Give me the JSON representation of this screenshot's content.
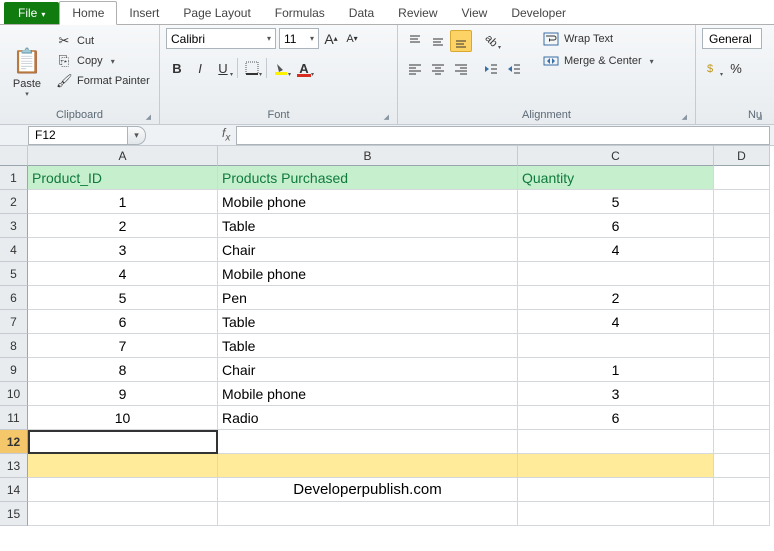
{
  "tabs": {
    "file": "File",
    "list": [
      "Home",
      "Insert",
      "Page Layout",
      "Formulas",
      "Data",
      "Review",
      "View",
      "Developer"
    ],
    "active": 0
  },
  "ribbon": {
    "clipboard": {
      "paste": "Paste",
      "cut": "Cut",
      "copy": "Copy",
      "format_painter": "Format Painter",
      "label": "Clipboard"
    },
    "font": {
      "name": "Calibri",
      "size": "11",
      "label": "Font"
    },
    "alignment": {
      "wrap": "Wrap Text",
      "merge": "Merge & Center",
      "label": "Alignment"
    },
    "number": {
      "format": "General",
      "label": "Nu"
    }
  },
  "namebox": "F12",
  "columns": [
    "A",
    "B",
    "C",
    "D"
  ],
  "header_row": {
    "a": "Product_ID",
    "b": "Products Purchased",
    "c": "Quantity"
  },
  "rows": [
    {
      "n": "1"
    },
    {
      "n": "2",
      "a": "1",
      "b": "Mobile phone",
      "c": "5"
    },
    {
      "n": "3",
      "a": "2",
      "b": "Table",
      "c": "6"
    },
    {
      "n": "4",
      "a": "3",
      "b": "Chair",
      "c": "4"
    },
    {
      "n": "5",
      "a": "4",
      "b": "Mobile phone",
      "c": ""
    },
    {
      "n": "6",
      "a": "5",
      "b": "Pen",
      "c": "2"
    },
    {
      "n": "7",
      "a": "6",
      "b": "Table",
      "c": "4"
    },
    {
      "n": "8",
      "a": "7",
      "b": "Table",
      "c": ""
    },
    {
      "n": "9",
      "a": "8",
      "b": "Chair",
      "c": "1"
    },
    {
      "n": "10",
      "a": "9",
      "b": "Mobile phone",
      "c": "3"
    },
    {
      "n": "11",
      "a": "10",
      "b": "Radio",
      "c": "6"
    },
    {
      "n": "12"
    },
    {
      "n": "13"
    },
    {
      "n": "14",
      "water": "Developerpublish.com"
    },
    {
      "n": "15"
    }
  ],
  "selected_row": "12",
  "highlight_row": "13",
  "colors": {
    "accent": "#107c10",
    "header_bg": "#c6efce",
    "header_fg": "#0f7b3b",
    "sel_row": "#ffeb99",
    "row_hdr_sel": "#f4c86a"
  }
}
